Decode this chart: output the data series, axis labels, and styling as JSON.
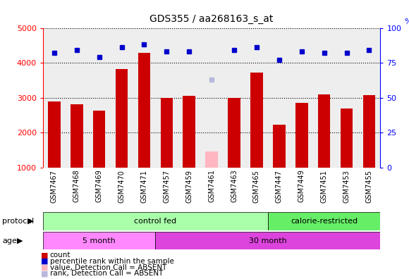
{
  "title": "GDS355 / aa268163_s_at",
  "samples": [
    "GSM7467",
    "GSM7468",
    "GSM7469",
    "GSM7470",
    "GSM7471",
    "GSM7457",
    "GSM7459",
    "GSM7461",
    "GSM7463",
    "GSM7465",
    "GSM7447",
    "GSM7449",
    "GSM7451",
    "GSM7453",
    "GSM7455"
  ],
  "counts": [
    2900,
    2820,
    2620,
    3820,
    4280,
    3000,
    3050,
    null,
    3000,
    3720,
    2230,
    2850,
    3100,
    2680,
    3080
  ],
  "counts_absent": [
    null,
    null,
    null,
    null,
    null,
    null,
    null,
    1450,
    null,
    null,
    null,
    null,
    null,
    null,
    null
  ],
  "percentile": [
    82,
    84,
    79,
    86,
    88,
    83,
    83,
    null,
    84,
    86,
    77,
    83,
    82,
    82,
    84
  ],
  "percentile_absent": [
    null,
    null,
    null,
    null,
    null,
    null,
    null,
    63,
    null,
    null,
    null,
    null,
    null,
    null,
    null
  ],
  "ylim_left": [
    1000,
    5000
  ],
  "ylim_right": [
    0,
    100
  ],
  "yticks_left": [
    1000,
    2000,
    3000,
    4000,
    5000
  ],
  "yticks_right": [
    0,
    25,
    50,
    75,
    100
  ],
  "bar_color": "#CC0000",
  "bar_color_absent": "#FFB6C1",
  "dot_color": "#0000CC",
  "dot_color_absent": "#B8B8DD",
  "protocol_groups": [
    {
      "label": "control fed",
      "start": 0,
      "end": 10,
      "color": "#AAFFAA"
    },
    {
      "label": "calorie-restricted",
      "start": 10,
      "end": 15,
      "color": "#66EE66"
    }
  ],
  "age_groups": [
    {
      "label": "5 month",
      "start": 0,
      "end": 5,
      "color": "#FF88FF"
    },
    {
      "label": "30 month",
      "start": 5,
      "end": 15,
      "color": "#DD44DD"
    }
  ],
  "legend_items": [
    {
      "label": "count",
      "color": "#CC0000"
    },
    {
      "label": "percentile rank within the sample",
      "color": "#0000CC"
    },
    {
      "label": "value, Detection Call = ABSENT",
      "color": "#FFB6C1"
    },
    {
      "label": "rank, Detection Call = ABSENT",
      "color": "#B8B8DD"
    }
  ],
  "background_color": "#FFFFFF",
  "plot_bg_color": "#EEEEEE",
  "xtick_bg_color": "#CCCCCC"
}
